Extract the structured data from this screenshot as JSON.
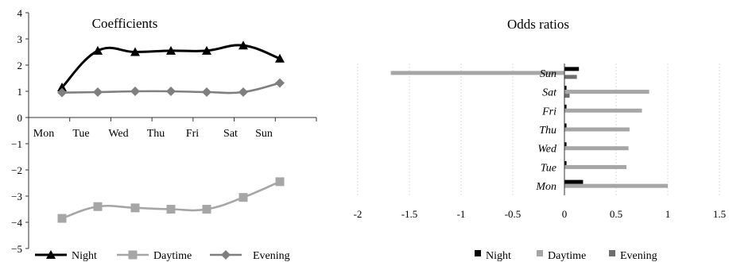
{
  "chart_data": [
    {
      "type": "line",
      "title": "Coefficients",
      "categories": [
        "Mon",
        "Tue",
        "Wed",
        "Thu",
        "Fri",
        "Sat",
        "Sun"
      ],
      "ylim": [
        -5,
        4
      ],
      "yticks": [
        4,
        3,
        2,
        1,
        0,
        -1,
        -2,
        -3,
        -4,
        -5
      ],
      "grid": false,
      "legend_position": "bottom",
      "series": [
        {
          "name": "Night",
          "values": [
            1.15,
            2.55,
            2.5,
            2.55,
            2.55,
            2.75,
            2.25
          ],
          "color": "#000000",
          "marker": "triangle"
        },
        {
          "name": "Daytime",
          "values": [
            -3.85,
            -3.4,
            -3.45,
            -3.5,
            -3.5,
            -3.05,
            -2.45
          ],
          "color": "#a6a6a6",
          "marker": "square"
        },
        {
          "name": "Evening",
          "values": [
            0.95,
            0.97,
            1.0,
            1.0,
            0.97,
            0.97,
            1.32
          ],
          "color": "#7f7f7f",
          "marker": "diamond"
        }
      ]
    },
    {
      "type": "bar",
      "orientation": "horizontal",
      "title": "Odds ratios",
      "categories": [
        "Mon",
        "Tue",
        "Wed",
        "Thu",
        "Fri",
        "Sat",
        "Sun"
      ],
      "xlim": [
        -2,
        1.5
      ],
      "xticks": [
        -2,
        -1.5,
        -1,
        -0.5,
        0,
        0.5,
        1,
        1.5
      ],
      "grid": true,
      "legend_position": "bottom",
      "series": [
        {
          "name": "Night",
          "values": [
            0.18,
            0.02,
            0.02,
            0.02,
            0.02,
            0.02,
            0.14
          ],
          "color": "#000000"
        },
        {
          "name": "Daytime",
          "values": [
            1.0,
            0.6,
            0.62,
            0.63,
            0.75,
            0.82,
            -1.68
          ],
          "color": "#a6a6a6"
        },
        {
          "name": "Evening",
          "values": [
            0.0,
            0.0,
            0.0,
            0.0,
            0.0,
            0.05,
            0.12
          ],
          "color": "#6e6e6e"
        }
      ]
    }
  ]
}
